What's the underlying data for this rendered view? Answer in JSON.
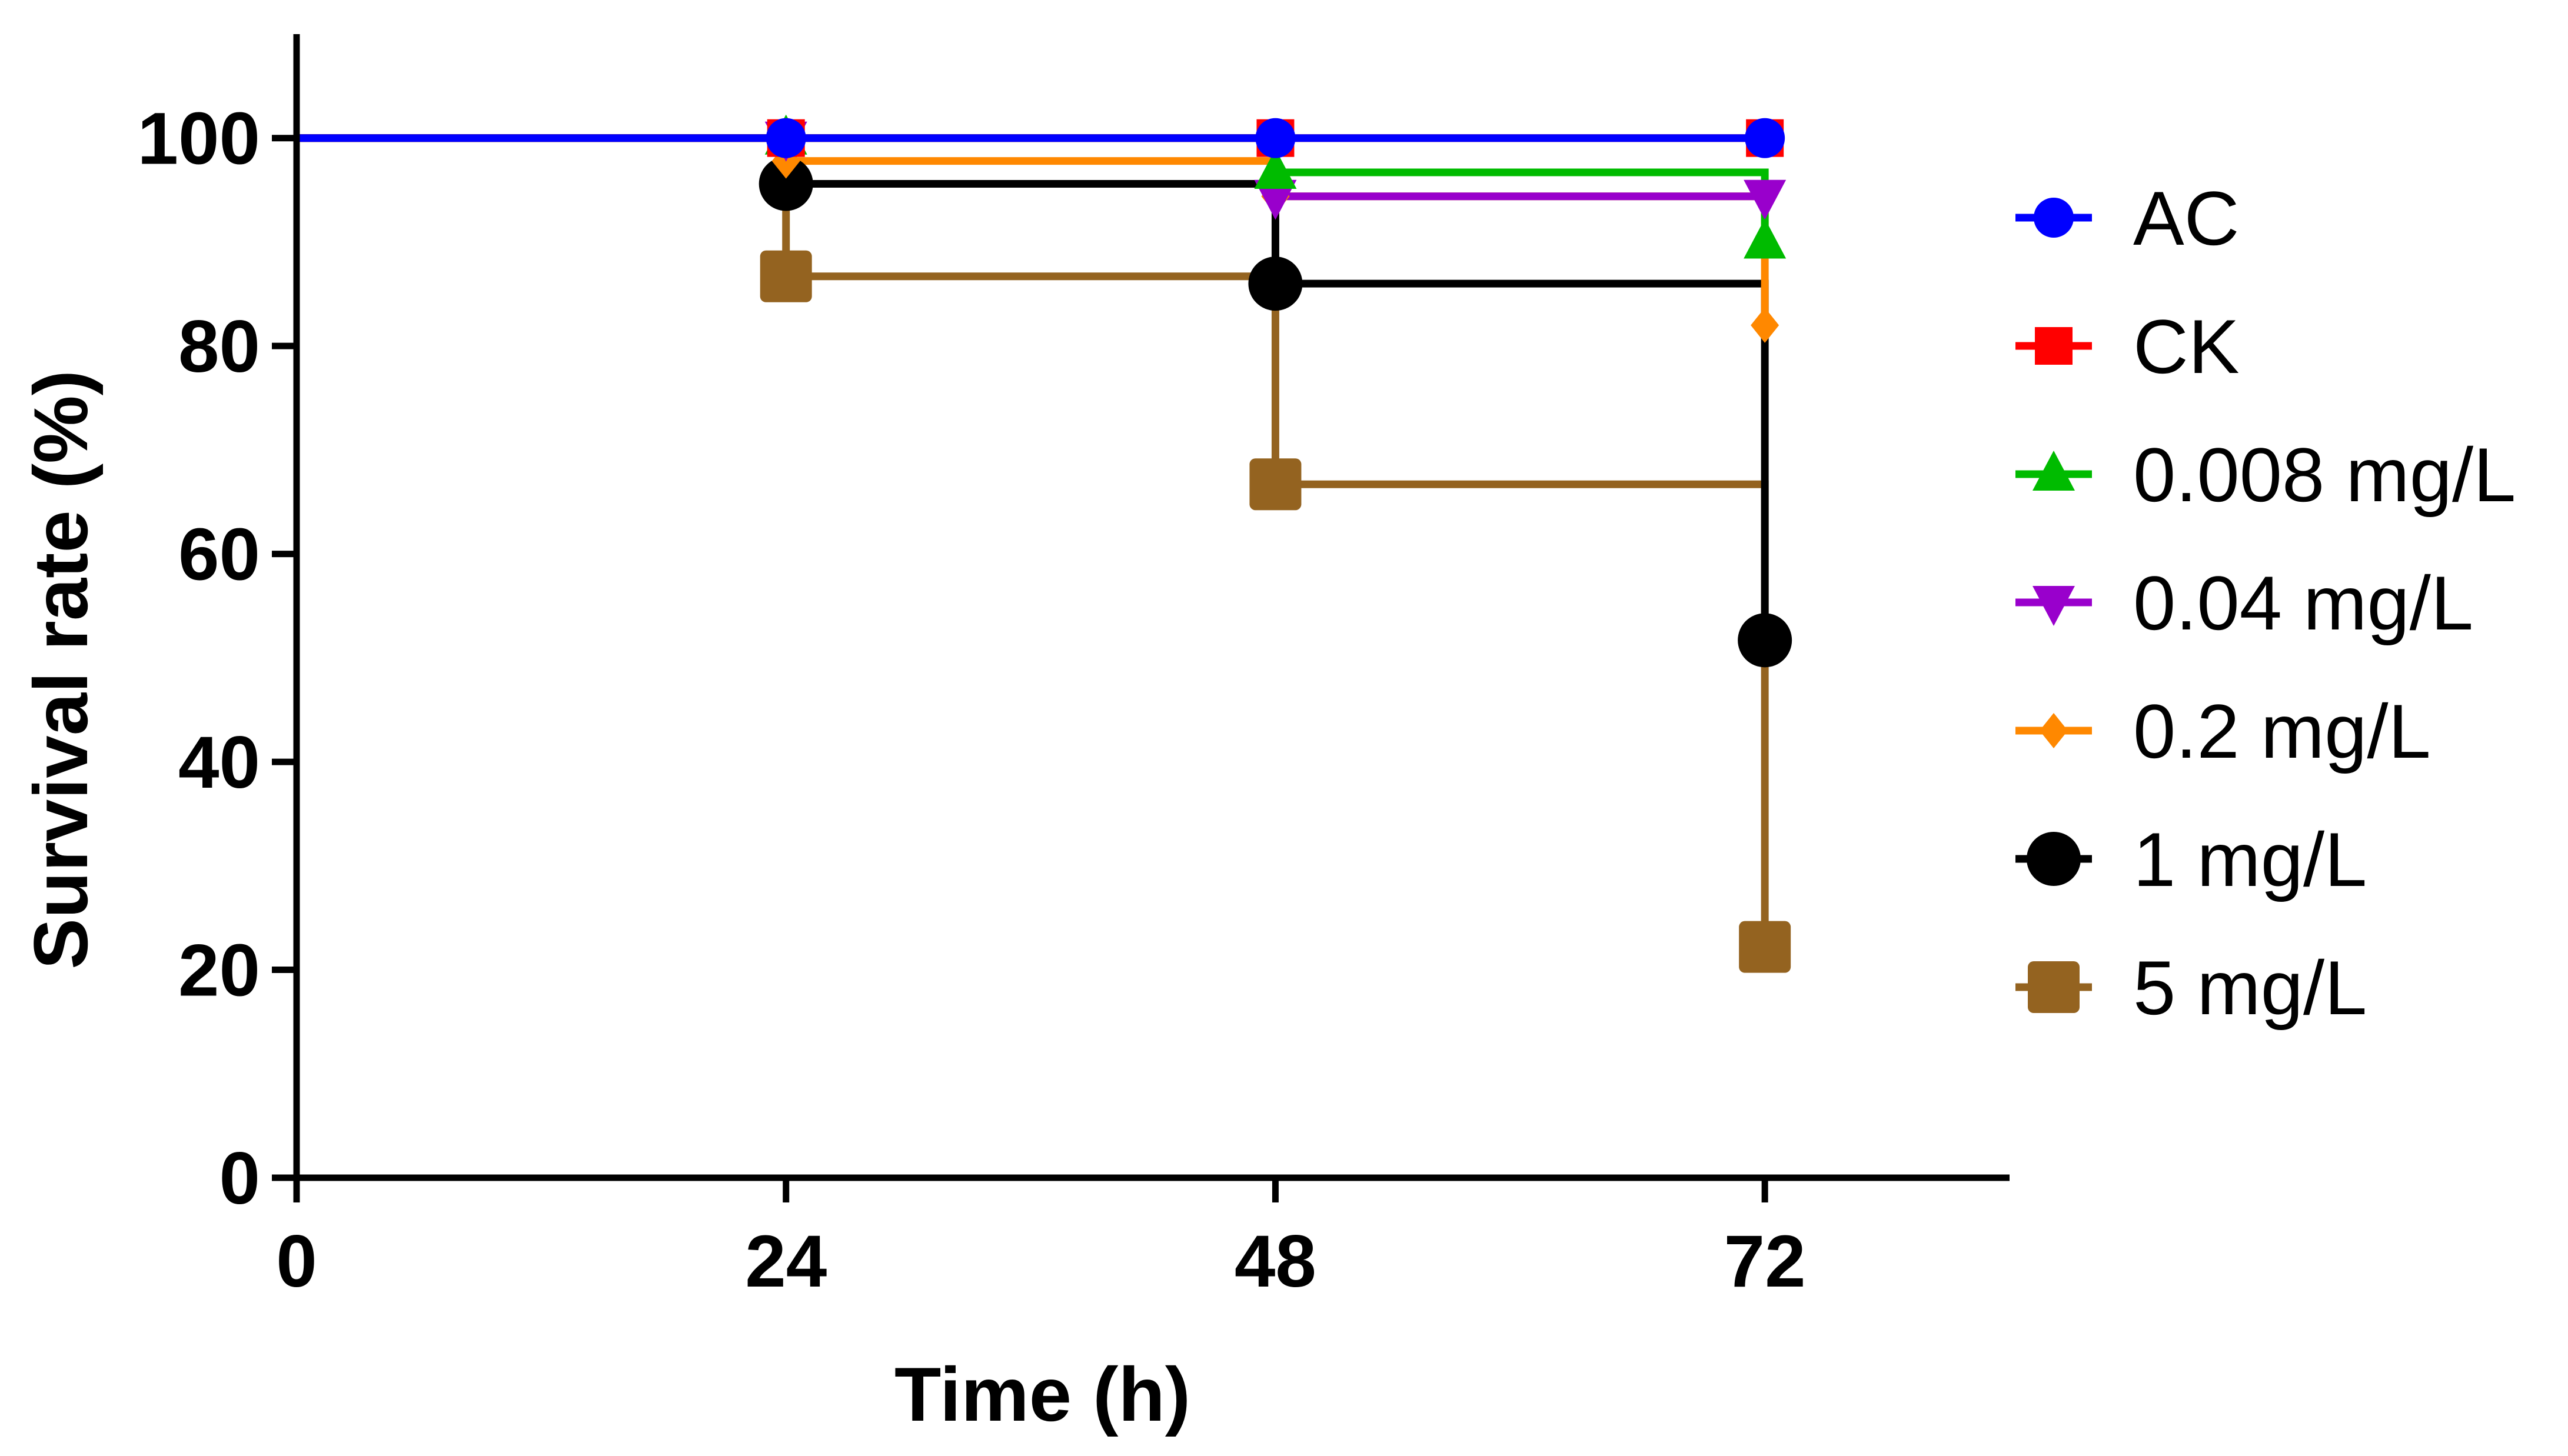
{
  "chart_data": {
    "type": "line",
    "subtype": "survival-step",
    "title": "",
    "xlabel": "Time (h)",
    "ylabel": "Survival rate (%)",
    "xlim": [
      0,
      84
    ],
    "ylim": [
      0,
      110
    ],
    "xticks": [
      0,
      24,
      48,
      72
    ],
    "yticks": [
      0,
      20,
      40,
      60,
      80,
      100
    ],
    "grid": false,
    "legend_position": "right",
    "series": [
      {
        "name": "AC",
        "color": "#0000ff",
        "marker": "circle",
        "x": [
          0,
          24,
          48,
          72
        ],
        "y": [
          100,
          100,
          100,
          100
        ]
      },
      {
        "name": "CK",
        "color": "#ff0000",
        "marker": "square",
        "x": [
          0,
          24,
          48,
          72
        ],
        "y": [
          100,
          100,
          100,
          100
        ]
      },
      {
        "name": "0.008 mg/L",
        "color": "#00bb00",
        "marker": "triangle-up",
        "x": [
          0,
          24,
          48,
          72
        ],
        "y": [
          100,
          100,
          96.7,
          90
        ]
      },
      {
        "name": "0.04 mg/L",
        "color": "#9900cc",
        "marker": "triangle-down",
        "x": [
          0,
          24,
          48,
          72
        ],
        "y": [
          100,
          100,
          94.4,
          94.4
        ]
      },
      {
        "name": "0.2 mg/L",
        "color": "#ff8800",
        "marker": "diamond",
        "x": [
          0,
          24,
          48,
          72
        ],
        "y": [
          100,
          97.8,
          94.4,
          82
        ]
      },
      {
        "name": "1 mg/L",
        "color": "#000000",
        "marker": "circle-large",
        "x": [
          0,
          24,
          48,
          72
        ],
        "y": [
          100,
          95.6,
          86,
          51.7
        ]
      },
      {
        "name": "5 mg/L",
        "color": "#946320",
        "marker": "square-large",
        "x": [
          0,
          24,
          48,
          72
        ],
        "y": [
          100,
          86.7,
          66.7,
          22.2
        ]
      }
    ]
  }
}
